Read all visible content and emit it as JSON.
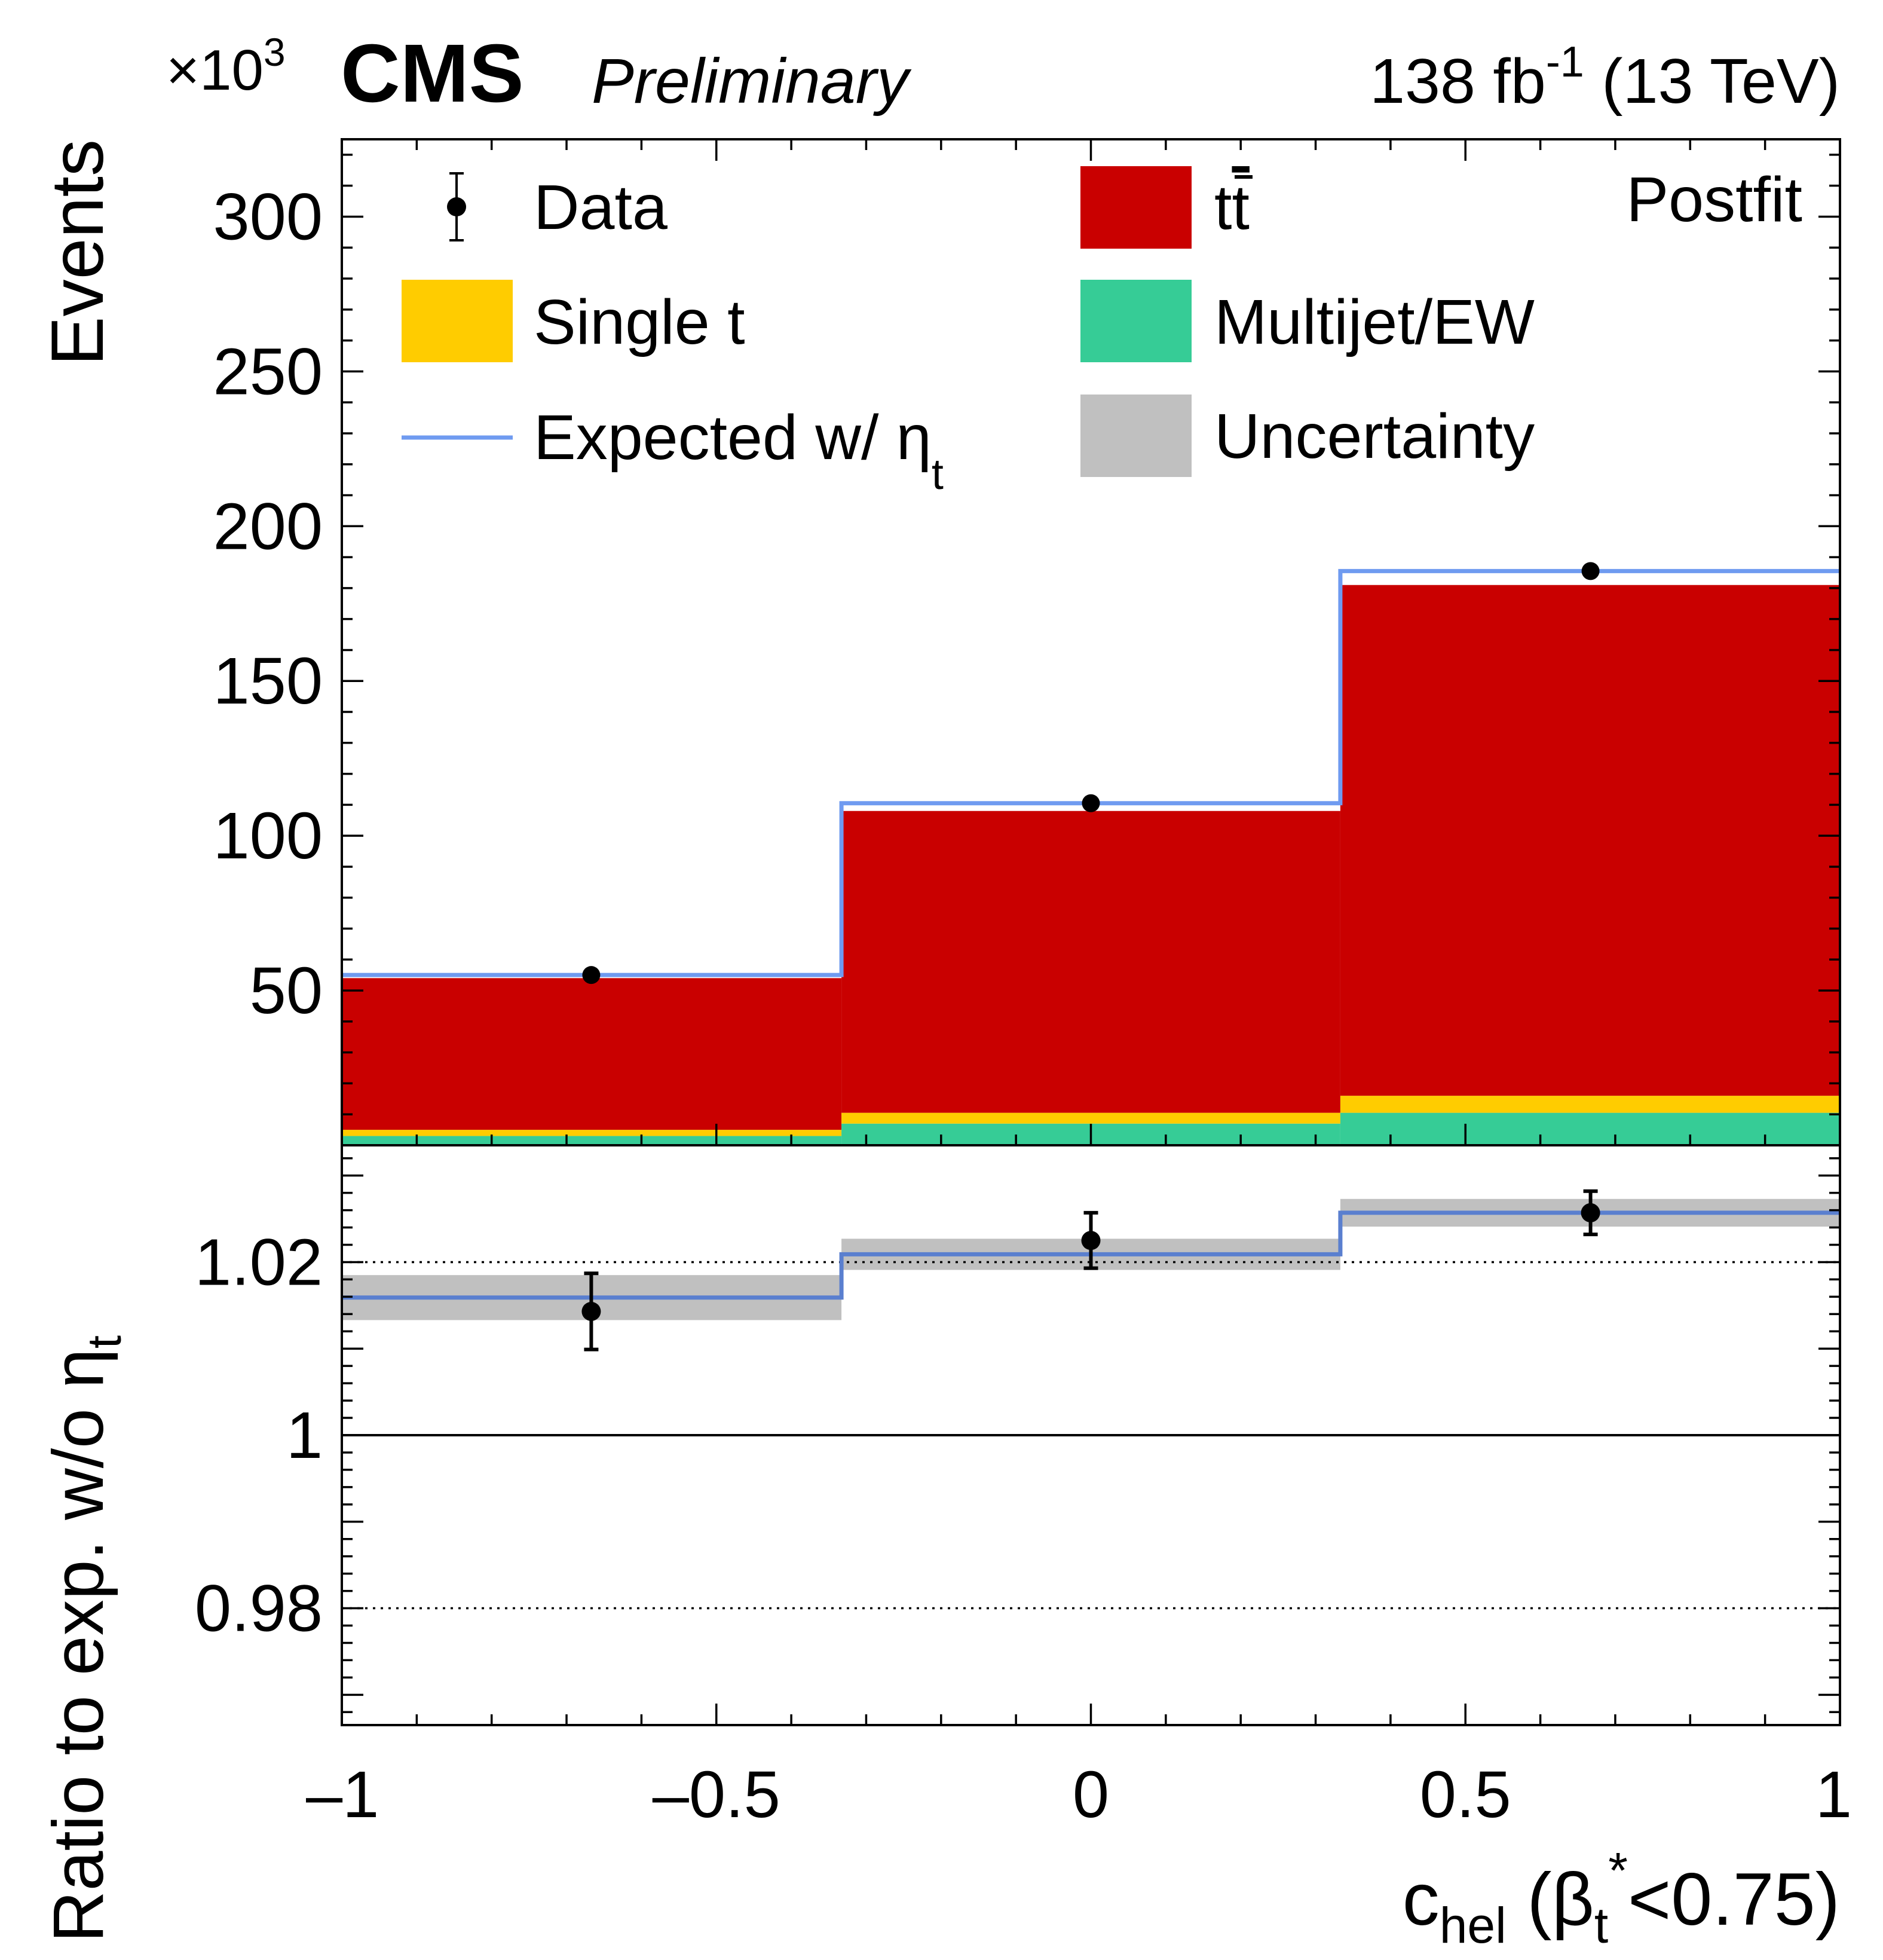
{
  "header": {
    "scale_base": "×10",
    "scale_exp": "3",
    "experiment": "CMS",
    "status": "Preliminary",
    "lumi_value": "138 fb",
    "lumi_exp": "-1",
    "energy": "(13 TeV)"
  },
  "colors": {
    "ttbar": "#c90000",
    "single_t": "#ffcc00",
    "multijet_ew": "#36cc96",
    "uncertainty": "#c0c0c0",
    "expected_eta": "#6f9bf0",
    "expected_eta_ratio": "#5a7fcf",
    "data": "#000000"
  },
  "chart_data": [
    {
      "type": "bar",
      "stacked": true,
      "panel": "upper",
      "title": "",
      "annotation": "Postfit",
      "xlim": [
        -1,
        1
      ],
      "ylim": [
        0,
        325
      ],
      "ylabel": "Events",
      "y_scale_factor": "×10^3",
      "bin_edges": [
        -1,
        -0.333,
        0.333,
        1
      ],
      "x_ticks": [
        "-1",
        "-0.5",
        "0",
        "0.5",
        "1"
      ],
      "y_ticks": [
        "50",
        "100",
        "150",
        "200",
        "250",
        "300"
      ],
      "y_tick_values": [
        50,
        100,
        150,
        200,
        250,
        300
      ],
      "legend": [
        {
          "key": "data",
          "label": "Data"
        },
        {
          "key": "ttbar",
          "label_main": "t",
          "label_bar": "t"
        },
        {
          "key": "single_t",
          "label": "Single t"
        },
        {
          "key": "multijet_ew",
          "label": "Multijet/EW"
        },
        {
          "key": "expected_eta",
          "label": "Expected w/ η",
          "label_sub": "t"
        },
        {
          "key": "uncertainty",
          "label": "Uncertainty"
        }
      ],
      "series": [
        {
          "key": "multijet_ew",
          "values": [
            3,
            7,
            10.5
          ]
        },
        {
          "key": "single_t",
          "values": [
            2,
            3.5,
            5.5
          ]
        },
        {
          "key": "ttbar",
          "values": [
            49,
            97.5,
            165
          ]
        }
      ],
      "expected_eta": [
        55,
        110.5,
        185.5
      ],
      "data": {
        "x": [
          -0.667,
          0,
          0.667
        ],
        "y": [
          55,
          110.5,
          185.5
        ]
      }
    },
    {
      "type": "scatter",
      "panel": "lower",
      "ylabel_main": "Ratio to exp. w/o η",
      "ylabel_sub": "t",
      "xlabel": "c",
      "xlabel_sub": "hel",
      "xlabel_rest_1": " (β",
      "xlabel_sub2": "t",
      "xlabel_sup": "*",
      "xlabel_rest_2": "<0.75)",
      "xlim": [
        -1,
        1
      ],
      "ylim": [
        0.9665,
        1.0335
      ],
      "y_ticks": [
        "0.98",
        "1",
        "1.02"
      ],
      "y_tick_values": [
        0.98,
        1.0,
        1.02
      ],
      "reference_lines": [
        0.98,
        1.0,
        1.02
      ],
      "bin_edges": [
        -1,
        -0.333,
        0.333,
        1
      ],
      "expected_ratio": [
        1.0159,
        1.0209,
        1.0257
      ],
      "uncertainty_band": {
        "low": [
          1.0133,
          1.0191,
          1.0241
        ],
        "high": [
          1.0185,
          1.0227,
          1.0273
        ]
      },
      "data": {
        "x": [
          -0.667,
          0,
          0.667
        ],
        "y": [
          1.0143,
          1.0225,
          1.0257
        ],
        "yerr": [
          0.0044,
          0.0032,
          0.0025
        ]
      }
    }
  ]
}
